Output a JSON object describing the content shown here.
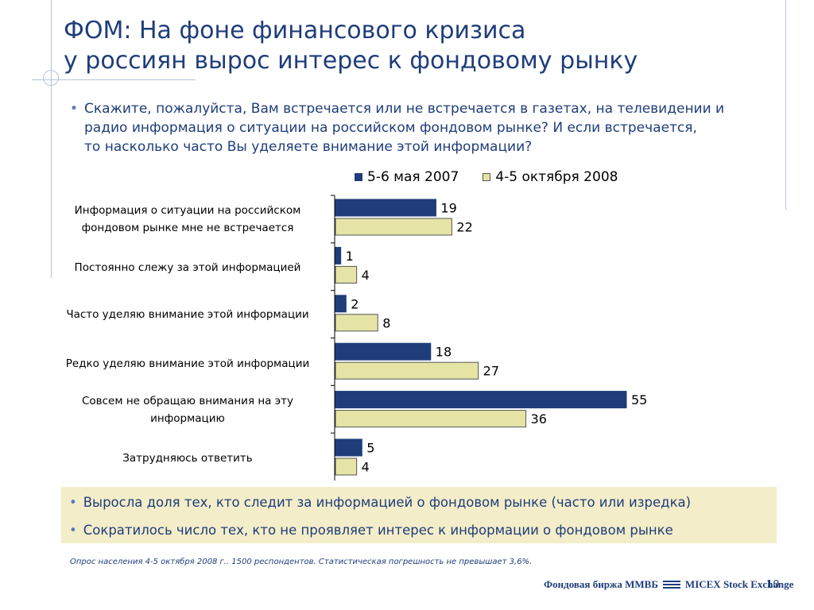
{
  "slide": {
    "title_lines": [
      "ФОМ: На фоне финансового кризиса",
      "у россиян вырос интерес к фондовому рынку"
    ],
    "bullet_symbol": "•",
    "question_lines": [
      "Скажите, пожалуйста, Вам встречается или не встречается в газетах, на телевидении и",
      "радио информация о ситуации на российском фондовом рынке? И если встречается,",
      "то насколько часто Вы уделяете внимание этой информации?"
    ],
    "summary": [
      "Выросла доля тех, кто следит за информацией о фондовом рынке (часто или изредка)",
      "Сократилось число тех, кто не проявляет интерес к информации о фондовом рынке"
    ],
    "footnote": "Опрос населения 4-5 октября 2008 г.. 1500 респондентов. Статистическая погрешность не превышает 3,6%.",
    "logo_text_left": "Фондовая биржа ММВБ",
    "logo_text_right": "MICEX Stock Exchange",
    "page_number": "10",
    "colors": {
      "title": "#1f3d7a",
      "accent_line": "#b7c2dc",
      "summary_bg": "#f3edc9"
    }
  },
  "chart_data": {
    "type": "bar",
    "orientation": "horizontal",
    "categories": [
      [
        "Информация о ситуации на российском",
        "фондовом рынке мне не встречается"
      ],
      [
        "Постоянно слежу за этой информацией"
      ],
      [
        "Часто уделяю внимание этой информации"
      ],
      [
        "Редко уделяю внимание этой информации"
      ],
      [
        "Совсем не обращаю внимания на эту",
        "информацию"
      ],
      [
        "Затрудняюсь ответить"
      ]
    ],
    "series": [
      {
        "name": "5-6 мая 2007",
        "values": [
          19,
          1,
          2,
          18,
          55,
          5
        ],
        "color": "#1f3d7a",
        "border": "#1f3d7a"
      },
      {
        "name": "4-5 октября 2008",
        "values": [
          22,
          4,
          8,
          27,
          36,
          4
        ],
        "color": "#e6e4a5",
        "border": "#555555"
      }
    ],
    "xlim": [
      0,
      55
    ],
    "legend_position": "top",
    "grid": false,
    "data_labels": true
  }
}
